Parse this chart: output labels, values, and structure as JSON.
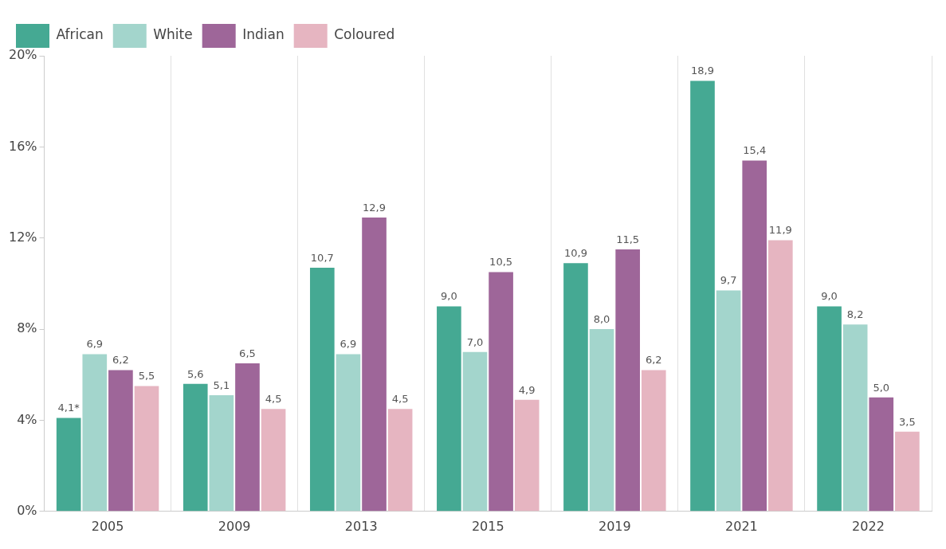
{
  "chart_data": {
    "type": "bar",
    "categories": [
      "2005",
      "2009",
      "2013",
      "2015",
      "2019",
      "2021",
      "2022"
    ],
    "series": [
      {
        "name": "African",
        "color": "#45a993",
        "values": [
          4.1,
          5.6,
          10.7,
          9.0,
          10.9,
          18.9,
          9.0
        ],
        "value_labels": [
          "4,1*",
          "5,6",
          "10,7",
          "9,0",
          "10,9",
          "18,9",
          "9,0"
        ]
      },
      {
        "name": "White",
        "color": "#a3d5cc",
        "values": [
          6.9,
          5.1,
          6.9,
          7.0,
          8.0,
          9.7,
          8.2
        ],
        "value_labels": [
          "6,9",
          "5,1",
          "6,9",
          "7,0",
          "8,0",
          "9,7",
          "8,2"
        ]
      },
      {
        "name": "Indian",
        "color": "#9e6699",
        "values": [
          6.2,
          6.5,
          12.9,
          10.5,
          11.5,
          15.4,
          5.0
        ],
        "value_labels": [
          "6,2",
          "6,5",
          "12,9",
          "10,5",
          "11,5",
          "15,4",
          "5,0"
        ]
      },
      {
        "name": "Coloured",
        "color": "#e6b5c1",
        "values": [
          5.5,
          4.5,
          4.5,
          4.9,
          6.2,
          11.9,
          3.5
        ],
        "value_labels": [
          "5,5",
          "4,5",
          "4,5",
          "4,9",
          "6,2",
          "11,9",
          "3,5"
        ]
      }
    ],
    "ylim": [
      0,
      20
    ],
    "yticks": [
      {
        "value": 0,
        "label": "0%"
      },
      {
        "value": 4,
        "label": "4%"
      },
      {
        "value": 8,
        "label": "8%"
      },
      {
        "value": 12,
        "label": "12%"
      },
      {
        "value": 16,
        "label": "16%"
      },
      {
        "value": 20,
        "label": "20%"
      }
    ],
    "grid": "x",
    "legend": "top left"
  }
}
